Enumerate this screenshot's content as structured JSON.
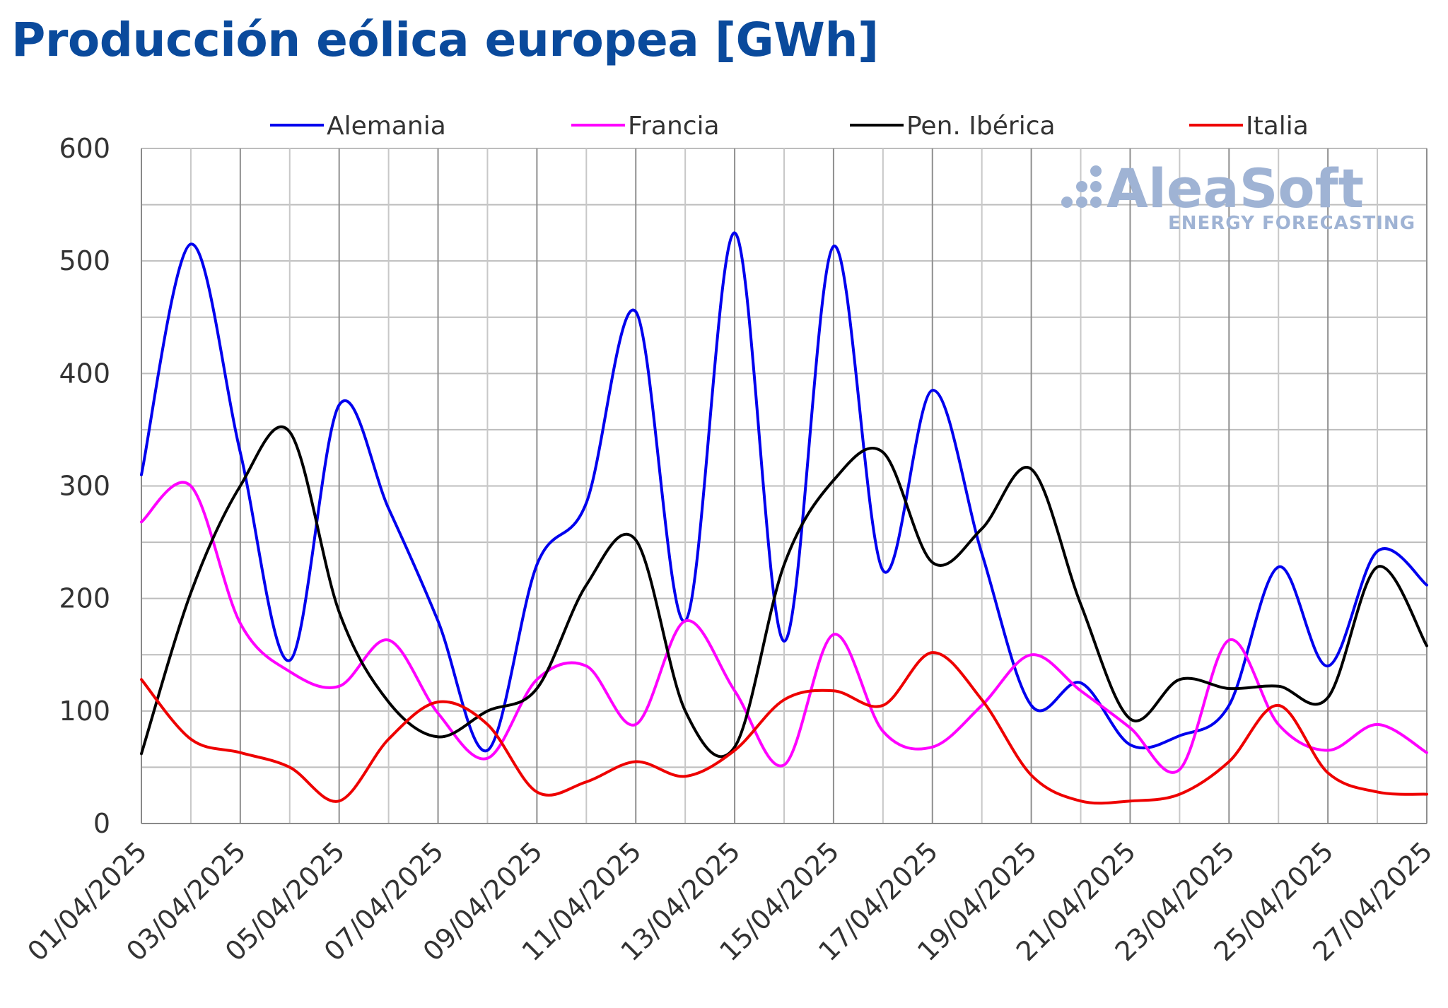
{
  "chart_data": {
    "type": "line",
    "title": "Producción eólica europea [GWh]",
    "xlabel": "",
    "ylabel": "",
    "ylim": [
      0,
      600
    ],
    "yticks": [
      "0",
      "100",
      "200",
      "300",
      "400",
      "500",
      "600"
    ],
    "xlim": [
      "01/04/2025",
      "27/04/2025"
    ],
    "xticks": [
      "01/04/2025",
      "03/04/2025",
      "05/04/2025",
      "07/04/2025",
      "09/04/2025",
      "11/04/2025",
      "13/04/2025",
      "15/04/2025",
      "17/04/2025",
      "19/04/2025",
      "21/04/2025",
      "23/04/2025",
      "25/04/2025",
      "27/04/2025"
    ],
    "grid": true,
    "legend_position": "top",
    "watermark": {
      "name": "AleaSoft",
      "tagline": "ENERGY FORECASTING"
    },
    "x": [
      "01/04/2025",
      "02/04/2025",
      "03/04/2025",
      "04/04/2025",
      "05/04/2025",
      "06/04/2025",
      "07/04/2025",
      "08/04/2025",
      "09/04/2025",
      "10/04/2025",
      "11/04/2025",
      "12/04/2025",
      "13/04/2025",
      "14/04/2025",
      "15/04/2025",
      "16/04/2025",
      "17/04/2025",
      "18/04/2025",
      "19/04/2025",
      "20/04/2025",
      "21/04/2025",
      "22/04/2025",
      "23/04/2025",
      "24/04/2025",
      "25/04/2025",
      "26/04/2025",
      "27/04/2025"
    ],
    "series": [
      {
        "name": "Alemania",
        "color": "#0000ee",
        "values": [
          310,
          515,
          330,
          145,
          372,
          280,
          180,
          65,
          230,
          285,
          455,
          180,
          525,
          162,
          513,
          225,
          385,
          240,
          105,
          125,
          70,
          78,
          105,
          228,
          140,
          242,
          212
        ]
      },
      {
        "name": "Francia",
        "color": "#ff00ff",
        "values": [
          268,
          300,
          178,
          135,
          122,
          163,
          98,
          58,
          128,
          140,
          88,
          180,
          118,
          52,
          168,
          82,
          68,
          105,
          150,
          118,
          85,
          48,
          163,
          88,
          65,
          88,
          63
        ]
      },
      {
        "name": "Pen. Ibérica",
        "color": "#000000",
        "values": [
          62,
          205,
          300,
          348,
          188,
          108,
          77,
          100,
          120,
          212,
          252,
          100,
          68,
          230,
          305,
          330,
          232,
          262,
          315,
          195,
          93,
          128,
          120,
          122,
          112,
          228,
          158
        ]
      },
      {
        "name": "Italia",
        "color": "#ee0000",
        "values": [
          128,
          75,
          63,
          50,
          20,
          75,
          108,
          88,
          28,
          37,
          55,
          42,
          65,
          110,
          118,
          105,
          152,
          110,
          43,
          20,
          20,
          26,
          55,
          105,
          45,
          28,
          26
        ]
      }
    ]
  }
}
